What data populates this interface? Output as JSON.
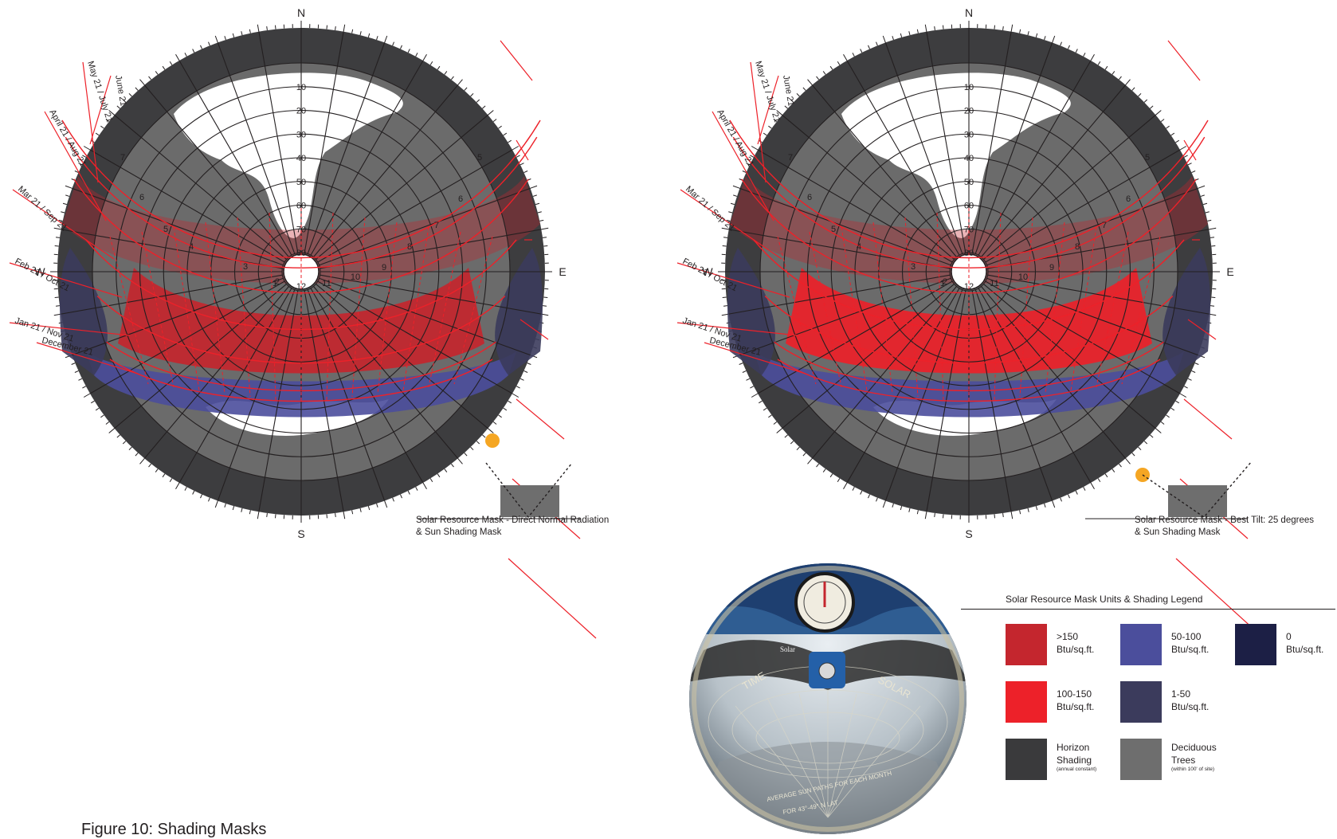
{
  "figure_title": "Figure 10: Shading Masks",
  "compass": {
    "north": "N",
    "south": "S",
    "east": "E",
    "west": "W"
  },
  "altitude_labels": [
    "10",
    "20",
    "30",
    "40",
    "50",
    "60",
    "70",
    "80"
  ],
  "hour_labels": [
    "7",
    "6",
    "5",
    "4",
    "3",
    "2",
    "1",
    "12",
    "11",
    "10",
    "9",
    "8",
    "7",
    "6",
    "5"
  ],
  "date_labels": [
    "June 21",
    "May 21 / July 21",
    "April 21 / Aug 21",
    "Mar 21 / Sep 21",
    "Feb 21 / Oct 21",
    "Jan 21 / Nov 21",
    "December 21"
  ],
  "charts": [
    {
      "caption_line1": "Solar Resource Mask - Direct Normal Radiation",
      "caption_line2": "& Sun Shading Mask"
    },
    {
      "caption_line1": "Solar Resource Mask - Best Tilt: 25 degrees",
      "caption_line2": "& Sun Shading Mask"
    }
  ],
  "legend": {
    "title": "Solar Resource Mask Units  &  Shading Legend",
    "items": [
      {
        "label1": ">150",
        "label2": "Btu/sq.ft.",
        "note": "",
        "color": "#c4262e"
      },
      {
        "label1": "50-100",
        "label2": "Btu/sq.ft.",
        "note": "",
        "color": "#4b4e9c"
      },
      {
        "label1": "0",
        "label2": "Btu/sq.ft.",
        "note": "",
        "color": "#1c1f45"
      },
      {
        "label1": "100-150",
        "label2": "Btu/sq.ft.",
        "note": "",
        "color": "#ed2129"
      },
      {
        "label1": "1-50",
        "label2": "Btu/sq.ft.",
        "note": "",
        "color": "#3b3b5c"
      },
      {
        "label1": "Horizon",
        "label2": "Shading",
        "note": "(annual constant)",
        "color": "#3a3a3c"
      },
      {
        "label1": "Deciduous",
        "label2": "Trees",
        "note": "(within 100' of site)",
        "color": "#6e6e6e"
      }
    ]
  },
  "photo_labels": {
    "time": "TIME",
    "solar": "SOLAR",
    "brand": "Solar",
    "sunpaths": "AVERAGE SUN PATHS FOR EACH MONTH",
    "lat": "FOR 43°-49° N LAT"
  },
  "colors": {
    "red_line": "#ed2129",
    "sun": "#f5a623",
    "grid": "#231f20"
  }
}
